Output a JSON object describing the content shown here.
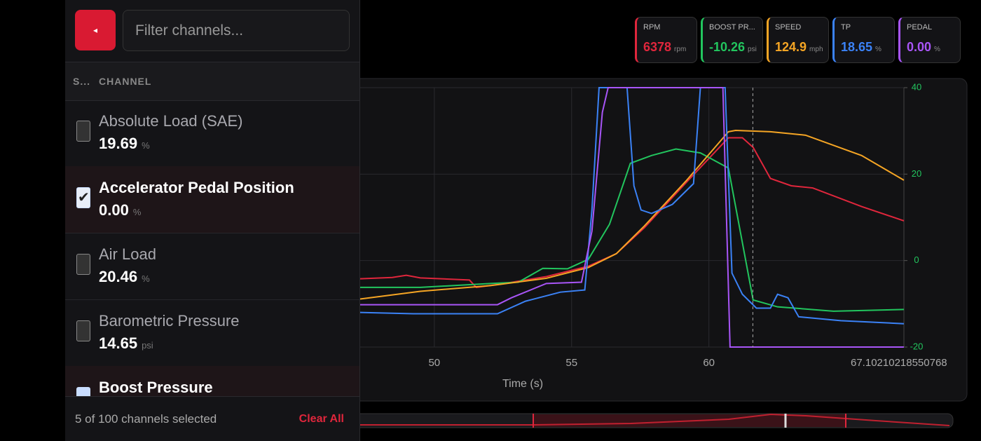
{
  "gauges": [
    {
      "label": "RPM",
      "value": "6378",
      "unit": "rpm",
      "color": "#e0263c"
    },
    {
      "label": "BOOST PR...",
      "value": "-10.26",
      "unit": "psi",
      "color": "#22c55e"
    },
    {
      "label": "SPEED",
      "value": "124.9",
      "unit": "mph",
      "color": "#f5a524"
    },
    {
      "label": "TP",
      "value": "18.65",
      "unit": "%",
      "color": "#3b82f6"
    },
    {
      "label": "PEDAL",
      "value": "0.00",
      "unit": "%",
      "color": "#a855f7"
    }
  ],
  "sidebar": {
    "filter_placeholder": "Filter channels...",
    "columns": [
      "S...",
      "CHANNEL"
    ],
    "rows": [
      {
        "name": "Absolute Load (SAE)",
        "value": "19.69",
        "unit": "%",
        "checked": false
      },
      {
        "name": "Accelerator Pedal Position",
        "value": "0.00",
        "unit": "%",
        "checked": true
      },
      {
        "name": "Air Load",
        "value": "20.46",
        "unit": "%",
        "checked": false
      },
      {
        "name": "Barometric Pressure",
        "value": "14.65",
        "unit": "psi",
        "checked": false
      },
      {
        "name": "Boost Pressure",
        "value": "",
        "unit": "",
        "checked": true
      }
    ],
    "footer": {
      "status": "5 of 100 channels selected",
      "clear": "Clear All"
    }
  },
  "chart_data": {
    "type": "line",
    "x_label": "Time (s)",
    "xlim": [
      47.3,
      67.10210218550768
    ],
    "xticks": [
      50,
      55,
      60,
      67.10210218550768
    ],
    "ylim": [
      -20,
      40
    ],
    "yticks": [
      40,
      20,
      0,
      -20
    ],
    "ytick_color": "#22c55e",
    "grid": true,
    "cursor": 61.6,
    "series": [
      {
        "color": "#e0263c",
        "x": [
          47.3,
          48.47,
          48.98,
          49.49,
          51.28,
          51.53,
          52.55,
          54.08,
          55.61,
          56.63,
          57.65,
          59.18,
          60.71,
          61.22,
          61.61,
          62.24,
          63.0,
          63.78,
          65.56,
          67.1
        ],
        "values": [
          -4.2,
          -3.9,
          -3.4,
          -4.0,
          -4.5,
          -6.2,
          -5.3,
          -3.7,
          -1.3,
          1.6,
          7.6,
          18.1,
          28.4,
          28.4,
          26.2,
          19.0,
          17.3,
          16.8,
          12.5,
          9.2
        ]
      },
      {
        "color": "#22c55e",
        "x": [
          47.3,
          49.49,
          52.04,
          53.06,
          53.95,
          54.85,
          55.61,
          56.38,
          57.14,
          57.91,
          58.8,
          59.69,
          60.71,
          61.61,
          62.5,
          64.54,
          67.1
        ],
        "values": [
          -6.2,
          -6.2,
          -5.3,
          -5.0,
          -1.8,
          -1.9,
          0.3,
          8.4,
          22.5,
          24.3,
          25.8,
          24.9,
          21.4,
          -9.1,
          -10.7,
          -11.7,
          -11.3
        ]
      },
      {
        "color": "#f5a524",
        "x": [
          47.3,
          49.49,
          52.04,
          54.08,
          55.61,
          56.63,
          57.65,
          59.18,
          60.71,
          60.97,
          62.24,
          63.52,
          65.56,
          67.1
        ],
        "values": [
          -8.9,
          -7.1,
          -5.8,
          -4.1,
          -1.6,
          1.6,
          8.0,
          18.5,
          29.8,
          30.1,
          29.8,
          29.0,
          24.3,
          18.6
        ]
      },
      {
        "color": "#3b82f6",
        "x": [
          47.3,
          49.23,
          52.3,
          53.32,
          54.59,
          55.48,
          55.74,
          56.0,
          57.02,
          57.27,
          57.53,
          57.91,
          58.67,
          59.44,
          59.69,
          60.59,
          60.84,
          61.22,
          61.73,
          62.24,
          62.5,
          62.88,
          63.27,
          64.8,
          67.1
        ],
        "values": [
          -12.0,
          -12.3,
          -12.3,
          -9.4,
          -7.3,
          -6.8,
          11.7,
          40,
          40,
          17.3,
          11.7,
          10.9,
          13.0,
          17.8,
          40,
          40,
          -2.9,
          -7.8,
          -11.0,
          -11.0,
          -7.8,
          -8.6,
          -13.0,
          -13.9,
          -14.6
        ]
      },
      {
        "color": "#a855f7",
        "x": [
          47.3,
          52.3,
          52.81,
          54.08,
          55.36,
          55.74,
          56.12,
          56.33,
          60.51,
          60.77,
          67.1
        ],
        "values": [
          -10.2,
          -10.2,
          -8.6,
          -5.3,
          -5.0,
          6.8,
          34.3,
          40,
          40,
          -20,
          -20
        ]
      }
    ]
  }
}
